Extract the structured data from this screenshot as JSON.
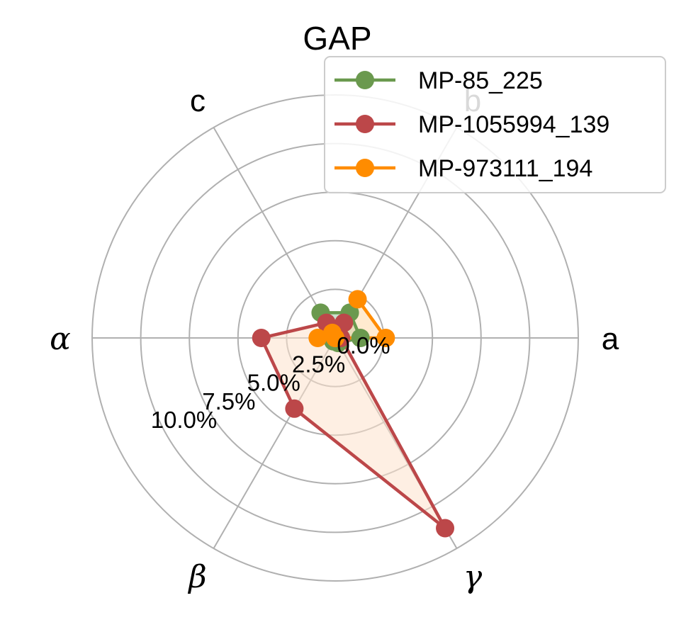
{
  "chart_data": {
    "type": "radar",
    "title": "GAP",
    "axes": [
      "a",
      "b",
      "c",
      "α",
      "β",
      "γ"
    ],
    "r_max": 12.5,
    "r_ticks": [
      0,
      2.5,
      5.0,
      7.5,
      10.0
    ],
    "r_tick_labels": [
      "0.0%",
      "2.5%",
      "5.0%",
      "7.5%",
      "10.0%"
    ],
    "grid": true,
    "legend_position": "top-right",
    "series": [
      {
        "name": "MP-85_225",
        "color": "#6a994e",
        "fill": "#a3c9a8",
        "values": [
          1.3,
          1.5,
          1.5,
          0.2,
          0.2,
          0.3
        ]
      },
      {
        "name": "MP-1055994_139",
        "color": "#bc4749",
        "fill": "#fde2cc",
        "values": [
          0.3,
          0.9,
          0.9,
          3.8,
          4.2,
          11.3
        ]
      },
      {
        "name": "MP-973111_194",
        "color": "#ff8c00",
        "fill": "#ffd8a8",
        "values": [
          2.6,
          2.3,
          0.3,
          0.9,
          0.0,
          0.0
        ]
      }
    ]
  }
}
